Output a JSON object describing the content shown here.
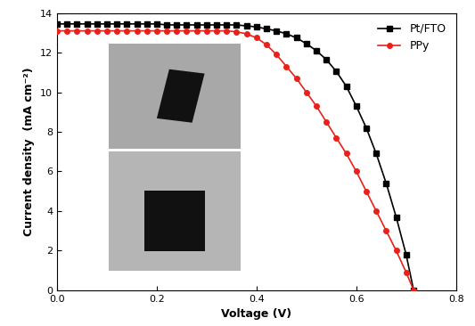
{
  "chart_data": {
    "type": "line",
    "x_label": "Voltage (V)",
    "y_label": "Current density  (mA cm⁻²)",
    "x": [
      0.0,
      0.02,
      0.04,
      0.06,
      0.08,
      0.1,
      0.12,
      0.14,
      0.16,
      0.18,
      0.2,
      0.22,
      0.24,
      0.26,
      0.28,
      0.3,
      0.32,
      0.34,
      0.36,
      0.38,
      0.4,
      0.42,
      0.44,
      0.46,
      0.48,
      0.5,
      0.52,
      0.54,
      0.56,
      0.58,
      0.6,
      0.62,
      0.64,
      0.66,
      0.68,
      0.7,
      0.715
    ],
    "series": [
      {
        "name": "Pt/FTO",
        "color": "#000000",
        "marker": "square",
        "line_style": "solid",
        "values": [
          13.45,
          13.45,
          13.45,
          13.45,
          13.45,
          13.45,
          13.45,
          13.45,
          13.45,
          13.45,
          13.45,
          13.4,
          13.4,
          13.4,
          13.4,
          13.4,
          13.4,
          13.4,
          13.4,
          13.35,
          13.3,
          13.2,
          13.1,
          12.95,
          12.75,
          12.45,
          12.1,
          11.65,
          11.05,
          10.3,
          9.3,
          8.2,
          6.9,
          5.4,
          3.7,
          1.8,
          0.0
        ]
      },
      {
        "name": "PPy",
        "color": "#e8211b",
        "marker": "circle",
        "line_style": "solid",
        "values": [
          13.1,
          13.1,
          13.1,
          13.1,
          13.1,
          13.1,
          13.1,
          13.1,
          13.1,
          13.1,
          13.1,
          13.1,
          13.1,
          13.1,
          13.1,
          13.1,
          13.1,
          13.1,
          13.05,
          12.95,
          12.75,
          12.4,
          11.9,
          11.3,
          10.7,
          10.0,
          9.3,
          8.5,
          7.7,
          6.9,
          6.0,
          5.0,
          4.0,
          3.0,
          2.0,
          0.9,
          0.0
        ]
      }
    ],
    "xlim": [
      0.0,
      0.8
    ],
    "xticks": [
      {
        "value": 0.0,
        "label": "0.0"
      },
      0.2,
      0.4,
      0.6,
      0.8
    ],
    "ylim": [
      0,
      14
    ],
    "yticks": [
      0,
      2,
      4,
      6,
      8,
      10,
      12,
      14
    ],
    "legend": "upper right",
    "grid": false
  }
}
